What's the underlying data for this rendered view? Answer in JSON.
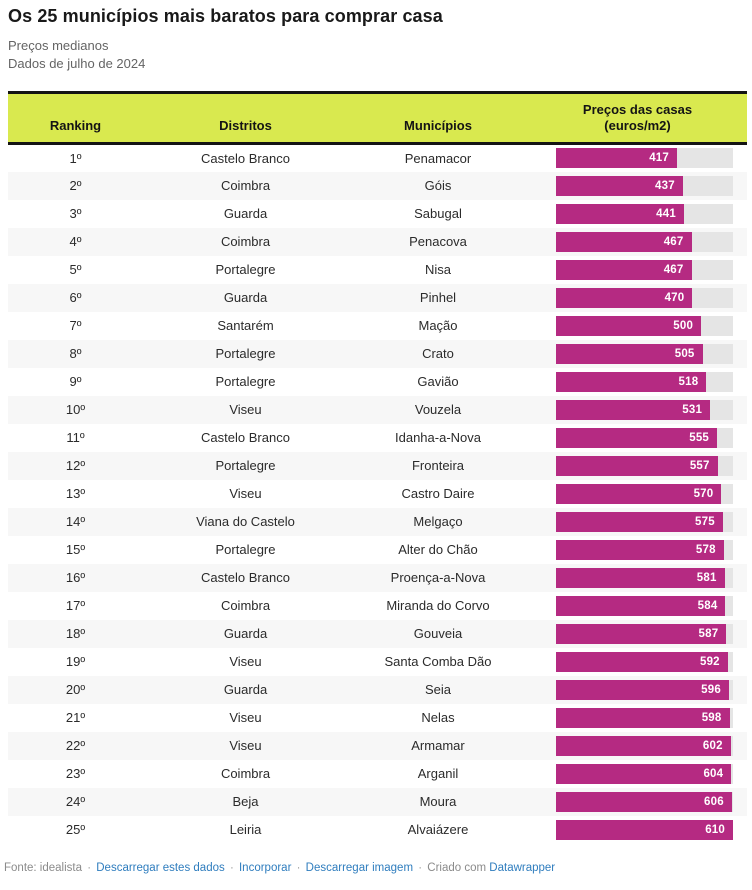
{
  "page": {
    "title": "Os 25 municípios mais baratos para comprar casa",
    "subtitle1": "Preços medianos",
    "subtitle2": "Dados de julho de 2024"
  },
  "table_header": {
    "ranking": "Ranking",
    "districts": "Distritos",
    "municipalities": "Municípios",
    "prices_line1": "Preços das casas",
    "prices_line2": "(euros/m2)"
  },
  "chart_data": {
    "type": "bar",
    "title": "Os 25 municípios mais baratos para comprar casa",
    "subtitle": "Preços medianos",
    "note": "Dados de julho de 2024",
    "columns": [
      "Ranking",
      "Distritos",
      "Municípios",
      "Preços das casas (euros/m2)"
    ],
    "xlim": [
      0,
      610
    ],
    "unit": "euros/m2",
    "legend_position": "none",
    "grid": false,
    "rows": [
      {
        "rank": "1º",
        "district": "Castelo Branco",
        "municipality": "Penamacor",
        "value": 417
      },
      {
        "rank": "2º",
        "district": "Coimbra",
        "municipality": "Góis",
        "value": 437
      },
      {
        "rank": "3º",
        "district": "Guarda",
        "municipality": "Sabugal",
        "value": 441
      },
      {
        "rank": "4º",
        "district": "Coimbra",
        "municipality": "Penacova",
        "value": 467
      },
      {
        "rank": "5º",
        "district": "Portalegre",
        "municipality": "Nisa",
        "value": 467
      },
      {
        "rank": "6º",
        "district": "Guarda",
        "municipality": "Pinhel",
        "value": 470
      },
      {
        "rank": "7º",
        "district": "Santarém",
        "municipality": "Mação",
        "value": 500
      },
      {
        "rank": "8º",
        "district": "Portalegre",
        "municipality": "Crato",
        "value": 505
      },
      {
        "rank": "9º",
        "district": "Portalegre",
        "municipality": "Gavião",
        "value": 518
      },
      {
        "rank": "10º",
        "district": "Viseu",
        "municipality": "Vouzela",
        "value": 531
      },
      {
        "rank": "11º",
        "district": "Castelo Branco",
        "municipality": "Idanha-a-Nova",
        "value": 555
      },
      {
        "rank": "12º",
        "district": "Portalegre",
        "municipality": "Fronteira",
        "value": 557
      },
      {
        "rank": "13º",
        "district": "Viseu",
        "municipality": "Castro Daire",
        "value": 570
      },
      {
        "rank": "14º",
        "district": "Viana do Castelo",
        "municipality": "Melgaço",
        "value": 575
      },
      {
        "rank": "15º",
        "district": "Portalegre",
        "municipality": "Alter do Chão",
        "value": 578
      },
      {
        "rank": "16º",
        "district": "Castelo Branco",
        "municipality": "Proença-a-Nova",
        "value": 581
      },
      {
        "rank": "17º",
        "district": "Coimbra",
        "municipality": "Miranda do Corvo",
        "value": 584
      },
      {
        "rank": "18º",
        "district": "Guarda",
        "municipality": "Gouveia",
        "value": 587
      },
      {
        "rank": "19º",
        "district": "Viseu",
        "municipality": "Santa Comba Dão",
        "value": 592
      },
      {
        "rank": "20º",
        "district": "Guarda",
        "municipality": "Seia",
        "value": 596
      },
      {
        "rank": "21º",
        "district": "Viseu",
        "municipality": "Nelas",
        "value": 598
      },
      {
        "rank": "22º",
        "district": "Viseu",
        "municipality": "Armamar",
        "value": 602
      },
      {
        "rank": "23º",
        "district": "Coimbra",
        "municipality": "Arganil",
        "value": 604
      },
      {
        "rank": "24º",
        "district": "Beja",
        "municipality": "Moura",
        "value": 606
      },
      {
        "rank": "25º",
        "district": "Leiria",
        "municipality": "Alvaiázere",
        "value": 610
      }
    ]
  },
  "footer": {
    "source": "Fonte: idealista",
    "separator": "·",
    "links": [
      "Descarregar estes dados",
      "Incorporar",
      "Descarregar imagem"
    ],
    "created_with": "Criado com",
    "datawrapper": "Datawrapper"
  },
  "colors": {
    "bar": "#b52a82",
    "bar_track": "#e5e5e5",
    "header_bg": "#d9e94f",
    "header_border": "#141414",
    "link": "#2f7dbe",
    "alt_row": "#f7f7f7"
  }
}
